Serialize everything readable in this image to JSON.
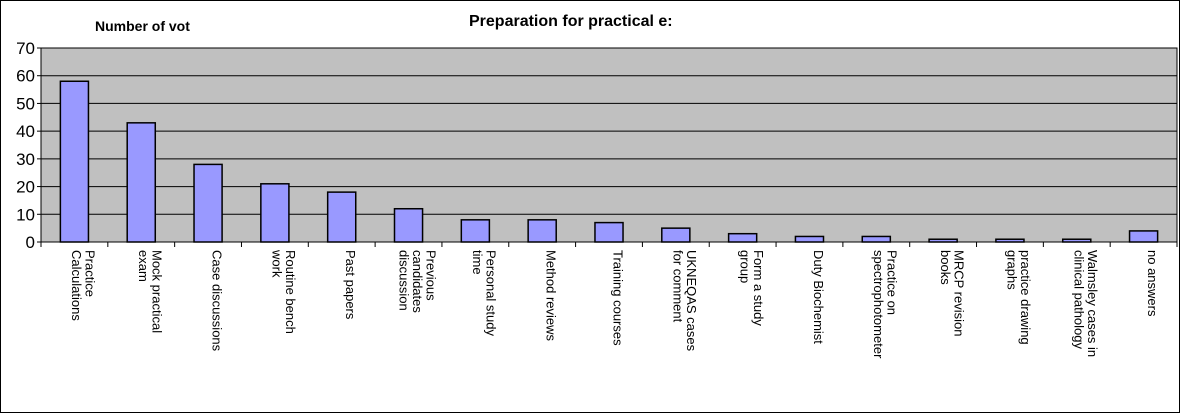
{
  "chart_data": {
    "type": "bar",
    "title": "Preparation for practical e:",
    "ylabel": "Number of vot",
    "xlabel": "",
    "ylim": [
      0,
      70
    ],
    "yticks": [
      0,
      10,
      20,
      30,
      40,
      50,
      60,
      70
    ],
    "grid": true,
    "categories": [
      [
        "Practice",
        "Calculations"
      ],
      [
        "Mock practical",
        "exam"
      ],
      [
        "Case discussions"
      ],
      [
        "Routine bench",
        "work"
      ],
      [
        "Past papers"
      ],
      [
        "Previous",
        "candidates",
        "discussion"
      ],
      [
        "Personal study",
        "time"
      ],
      [
        "Method reviews"
      ],
      [
        "Training courses"
      ],
      [
        "UKNEQAS cases",
        "for comment"
      ],
      [
        "Form a study",
        "group"
      ],
      [
        "Duty Biochemist"
      ],
      [
        "Practice on",
        "spectrophotometer"
      ],
      [
        "MRCP revision",
        "books"
      ],
      [
        "practice drawing",
        "graphs"
      ],
      [
        "Walmsley cases in",
        "clinical pathology"
      ],
      [
        "no answers"
      ]
    ],
    "values": [
      58,
      43,
      28,
      21,
      18,
      12,
      8,
      8,
      7,
      5,
      3,
      2,
      2,
      1,
      1,
      1,
      4
    ],
    "colors": {
      "bar_fill": "#9999ff",
      "bar_stroke": "#000000",
      "plot_background": "#c0c0c0",
      "grid": "#000000"
    }
  }
}
